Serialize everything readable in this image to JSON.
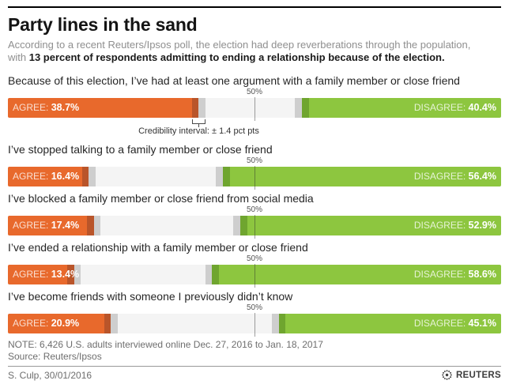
{
  "header": {
    "title": "Party lines in the sand",
    "subtitle_line1": "According to a recent Reuters/Ipsos poll, the election had deep reverberations through the population,",
    "subtitle_line2_prefix": "with ",
    "subtitle_line2_bold": "13 percent of respondents admitting to ending a relationship because of the election."
  },
  "labels": {
    "fifty": "50%",
    "agree": "AGREE:",
    "disagree": "DISAGREE:",
    "credibility_note": "Credibility interval: ± 1.4 pct pts"
  },
  "charts": [
    {
      "question": "Because of this election, I’ve had at least one argument with a family member or close friend",
      "agree_text": "38.7%",
      "disagree_text": "40.4%"
    },
    {
      "question": "I’ve stopped talking to a family member or close friend",
      "agree_text": "16.4%",
      "disagree_text": "56.4%"
    },
    {
      "question": "I’ve blocked a family member or close friend from social media",
      "agree_text": "17.4%",
      "disagree_text": "52.9%"
    },
    {
      "question": "I’ve ended a relationship with a family member or close friend",
      "agree_text": "13.4%",
      "disagree_text": "58.6%"
    },
    {
      "question": "I’ve become friends with someone I previously didn’t know",
      "agree_text": "20.9%",
      "disagree_text": "45.1%"
    }
  ],
  "chart_data": {
    "type": "bar",
    "orientation": "horizontal-diverging",
    "title": "Party lines in the sand",
    "categories": [
      "Because of this election, I’ve had at least one argument with a family member or close friend",
      "I’ve stopped talking to a family member or close friend",
      "I’ve blocked a family member or close friend from social media",
      "I’ve ended a relationship with a family member or close friend",
      "I’ve become friends with someone I previously didn’t know"
    ],
    "series": [
      {
        "name": "Agree",
        "color": "#e8692c",
        "values": [
          38.7,
          16.4,
          17.4,
          13.4,
          20.9
        ]
      },
      {
        "name": "Disagree",
        "color": "#8dc63f",
        "values": [
          40.4,
          56.4,
          52.9,
          58.6,
          45.1
        ]
      }
    ],
    "unit": "percent",
    "xlim": [
      0,
      100
    ],
    "center_marker": "50%",
    "credibility_interval_pct_pts": 1.4,
    "legend_position": "in-bar labels (AGREE left orange, DISAGREE right green)"
  },
  "colors": {
    "agree": "#e8692c",
    "agree_dark": "#b9552a",
    "disagree": "#8dc63f",
    "disagree_dark": "#6fa52f",
    "ci_gray": "#cecece",
    "track": "#f4f4f4"
  },
  "footer": {
    "note": "NOTE: 6,426 U.S. adults interviewed online Dec. 27, 2016  to Jan. 18, 2017",
    "source": "Source: Reuters/Ipsos",
    "credit": "S. Culp,  30/01/2016",
    "logo_text": "REUTERS"
  }
}
